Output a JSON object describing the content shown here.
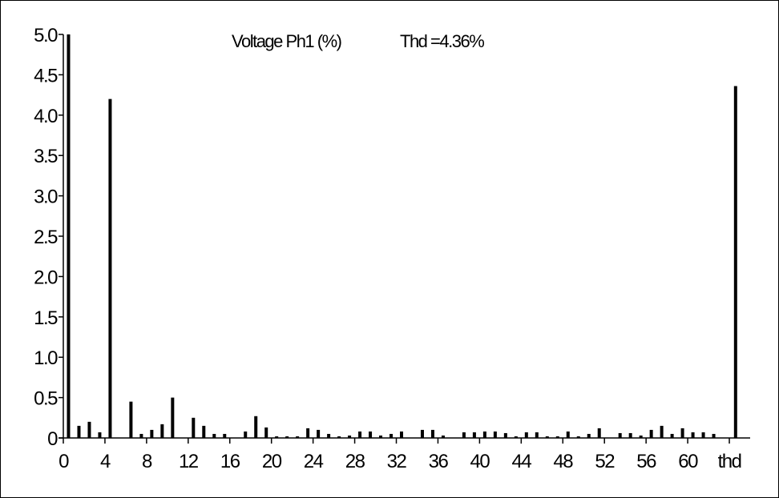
{
  "chart_data": {
    "type": "bar",
    "title": "Voltage Ph1 (%)",
    "thd_text": "Thd =4.36%",
    "xlabel": "",
    "ylabel": "",
    "ylim": [
      0,
      5.0
    ],
    "xlim": [
      0,
      66
    ],
    "y_tick_labels": [
      "0",
      "0.5",
      "1.0",
      "1.5",
      "2.0",
      "2.5",
      "3.0",
      "3.5",
      "4.0",
      "4.5",
      "5.0"
    ],
    "y_tick_values": [
      0,
      0.5,
      1.0,
      1.5,
      2.0,
      2.5,
      3.0,
      3.5,
      4.0,
      4.5,
      5.0
    ],
    "x_tick_labels": [
      "0",
      "4",
      "8",
      "12",
      "16",
      "20",
      "24",
      "28",
      "32",
      "36",
      "40",
      "44",
      "48",
      "52",
      "56",
      "60",
      "thd"
    ],
    "x_tick_values": [
      0,
      4,
      8,
      12,
      16,
      20,
      24,
      28,
      32,
      36,
      40,
      44,
      48,
      52,
      56,
      60,
      64
    ],
    "harmonics": [
      1,
      2,
      3,
      4,
      5,
      6,
      7,
      8,
      9,
      10,
      11,
      12,
      13,
      14,
      15,
      16,
      17,
      18,
      19,
      20,
      21,
      22,
      23,
      24,
      25,
      26,
      27,
      28,
      29,
      30,
      31,
      32,
      33,
      34,
      35,
      36,
      37,
      38,
      39,
      40,
      41,
      42,
      43,
      44,
      45,
      46,
      47,
      48,
      49,
      50,
      51,
      52,
      53,
      54,
      55,
      56,
      57,
      58,
      59,
      60,
      61,
      62,
      63
    ],
    "values": [
      5.0,
      0.15,
      0.2,
      0.07,
      4.2,
      0.0,
      0.45,
      0.05,
      0.1,
      0.17,
      0.5,
      0.0,
      0.25,
      0.15,
      0.05,
      0.05,
      0.0,
      0.08,
      0.27,
      0.13,
      0.02,
      0.02,
      0.02,
      0.12,
      0.1,
      0.05,
      0.02,
      0.03,
      0.08,
      0.08,
      0.03,
      0.05,
      0.08,
      0.0,
      0.1,
      0.1,
      0.03,
      0.0,
      0.07,
      0.07,
      0.08,
      0.08,
      0.06,
      0.02,
      0.07,
      0.07,
      0.02,
      0.02,
      0.08,
      0.02,
      0.05,
      0.12,
      0.0,
      0.06,
      0.06,
      0.03,
      0.1,
      0.15,
      0.05,
      0.12,
      0.07,
      0.07,
      0.05
    ],
    "thd_value": 4.36,
    "bar_color": "#000000",
    "grid": false,
    "legend": "none"
  }
}
